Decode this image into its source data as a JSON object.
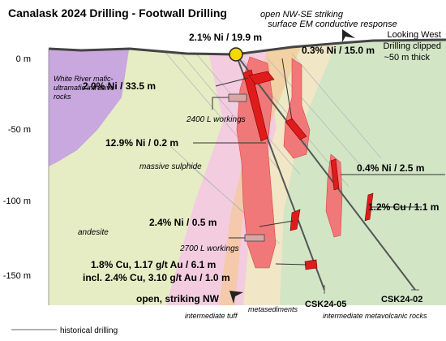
{
  "title": "Canalask 2024 Drilling - Footwall Drilling",
  "em_response": [
    "open NW-SE striking",
    "surface EM conductive response"
  ],
  "view_note": [
    "Looking West",
    "Drilling clipped",
    "~50 m thick"
  ],
  "depth_ticks": [
    "0 m",
    "-50 m",
    "-100 m",
    "-150 m"
  ],
  "rock_units": {
    "white_river": [
      "White River mafic-",
      "ultramafic intrusive",
      "rocks"
    ],
    "andesite": "andesite",
    "intermediate_tuff": "intermediate tuff",
    "metasediments": "metasediments",
    "metavolcanic": "intermediate metavolcanic rocks",
    "massive_sulphide": "massive sulphide"
  },
  "workings": {
    "upper": "2400 L workings",
    "lower": "2700 L workings"
  },
  "intercepts": {
    "collar": "2.1% Ni / 19.9 m",
    "upper_right": "0.3% Ni / 15.0 m",
    "upper_left": "2.0% Ni / 33.5 m",
    "middle": "12.9% Ni / 0.2 m",
    "right_ni": "0.4% Ni / 2.5 m",
    "right_cu": "1.2% Cu / 1.1 m",
    "lower_ni": "2.4% Ni / 0.5 m",
    "cu_au_1": "1.8% Cu, 1.17 g/t Au / 6.1 m",
    "cu_au_2": "incl. 2.4% Cu, 3.10 g/t Au / 1.0 m"
  },
  "holes": {
    "hole_05": "CSK24-05",
    "hole_02": "CSK24-02"
  },
  "open_nw": "open, striking NW",
  "legend": {
    "historical": "historical drilling"
  },
  "colors": {
    "andesite": "#e6edc4",
    "white_river": "#c8a8de",
    "pink_tuff": "#f3cce0",
    "metased": "#f1e6c6",
    "orange_band": "#f6c89a",
    "metavolcanic": "#d2e6c6",
    "sulphide": "#f07878",
    "intercept": "#e01b1b",
    "collar": "#f5d800"
  }
}
